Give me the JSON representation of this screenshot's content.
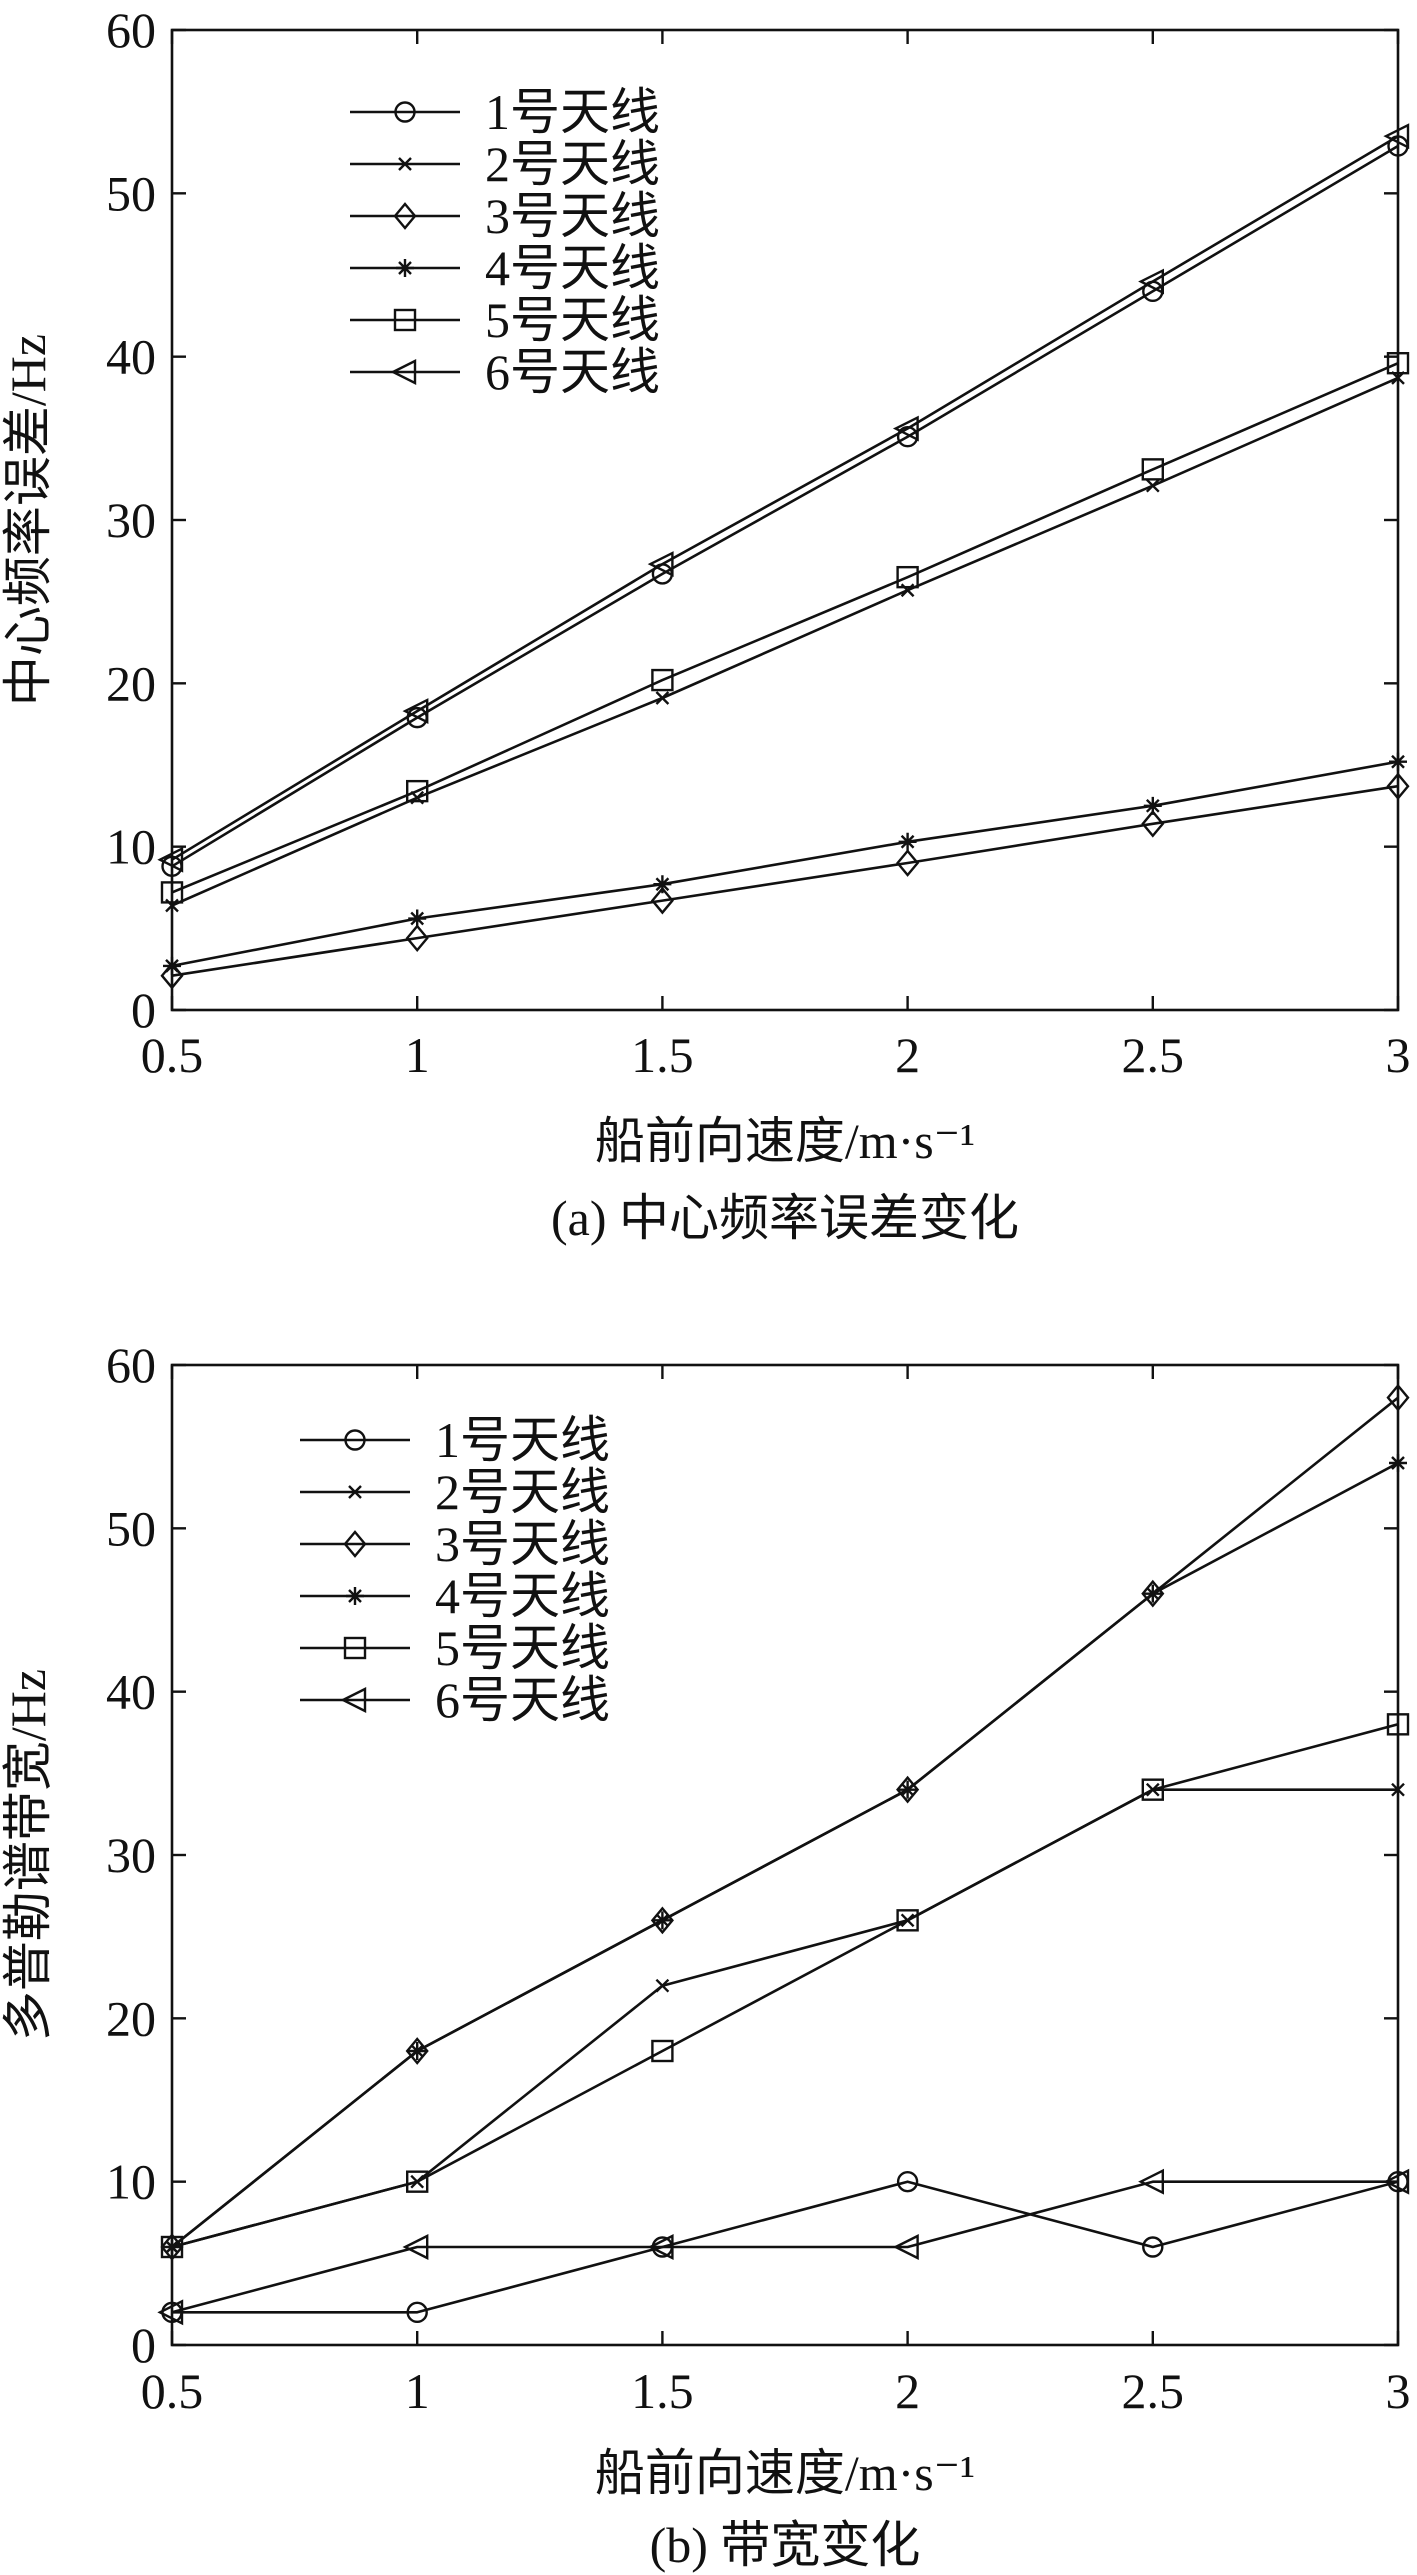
{
  "chart_data": [
    {
      "type": "line",
      "caption": "(a) 中心频率误差变化",
      "xlabel": "船前向速度/m·s⁻¹",
      "ylabel": "中心频率误差/Hz",
      "x": [
        0.5,
        1,
        1.5,
        2,
        2.5,
        3
      ],
      "xticks": [
        "0.5",
        "1",
        "1.5",
        "2",
        "2.5",
        "3"
      ],
      "yticks": [
        "0",
        "10",
        "20",
        "30",
        "40",
        "50",
        "60"
      ],
      "xlim": [
        0.5,
        3
      ],
      "ylim": [
        0,
        60
      ],
      "grid": false,
      "legend_position": "top-left",
      "series": [
        {
          "name": "1号天线",
          "marker": "circle",
          "values": [
            8.8,
            17.9,
            26.7,
            35.1,
            44.0,
            52.9
          ]
        },
        {
          "name": "2号天线",
          "marker": "x",
          "values": [
            6.4,
            13.0,
            19.1,
            25.7,
            32.1,
            38.7
          ]
        },
        {
          "name": "3号天线",
          "marker": "diamond",
          "values": [
            2.1,
            4.4,
            6.7,
            9.0,
            11.4,
            13.7
          ]
        },
        {
          "name": "4号天线",
          "marker": "star",
          "values": [
            2.7,
            5.6,
            7.7,
            10.3,
            12.5,
            15.2
          ]
        },
        {
          "name": "5号天线",
          "marker": "square",
          "values": [
            7.2,
            13.4,
            20.2,
            26.5,
            33.1,
            39.6
          ]
        },
        {
          "name": "6号天线",
          "marker": "triangle-left",
          "values": [
            9.2,
            18.3,
            27.3,
            35.6,
            44.6,
            53.5
          ]
        }
      ]
    },
    {
      "type": "line",
      "caption": "(b) 带宽变化",
      "xlabel": "船前向速度/m·s⁻¹",
      "ylabel": "多普勒谱带宽/Hz",
      "x": [
        0.5,
        1,
        1.5,
        2,
        2.5,
        3
      ],
      "xticks": [
        "0.5",
        "1",
        "1.5",
        "2",
        "2.5",
        "3"
      ],
      "yticks": [
        "0",
        "10",
        "20",
        "30",
        "40",
        "50",
        "60"
      ],
      "xlim": [
        0.5,
        3
      ],
      "ylim": [
        0,
        60
      ],
      "grid": false,
      "legend_position": "top-left",
      "series": [
        {
          "name": "1号天线",
          "marker": "circle",
          "values": [
            2,
            2,
            6,
            10,
            6,
            10
          ]
        },
        {
          "name": "2号天线",
          "marker": "x",
          "values": [
            6,
            10,
            22,
            26,
            34,
            34
          ]
        },
        {
          "name": "3号天线",
          "marker": "diamond",
          "values": [
            6,
            18,
            26,
            34,
            46,
            58
          ]
        },
        {
          "name": "4号天线",
          "marker": "star",
          "values": [
            6,
            18,
            26,
            34,
            46,
            54
          ]
        },
        {
          "name": "5号天线",
          "marker": "square",
          "values": [
            6,
            10,
            18,
            26,
            34,
            38
          ]
        },
        {
          "name": "6号天线",
          "marker": "triangle-left",
          "values": [
            2,
            6,
            6,
            6,
            10,
            10
          ]
        }
      ]
    }
  ]
}
